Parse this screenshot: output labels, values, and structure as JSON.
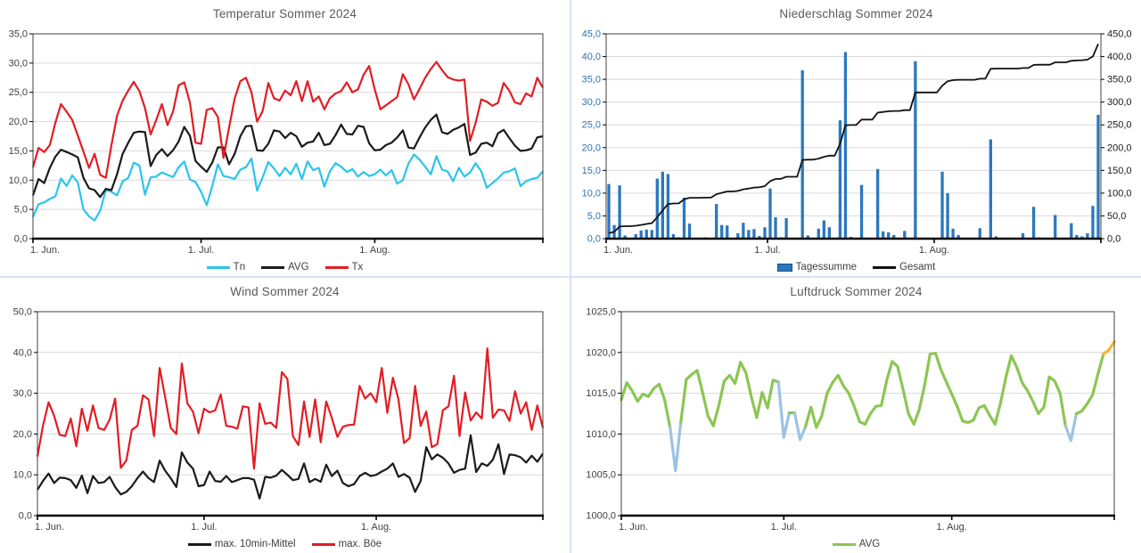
{
  "chart_data": [
    {
      "type": "line",
      "title": "Temperatur Sommer 2024",
      "grid_color": "#d9d9d9",
      "border_color": "#404040",
      "x_axis": {
        "n_points": 92,
        "tick_days": [
          0,
          30,
          61
        ],
        "tick_labels": [
          "1. Jun.",
          "1. Jul.",
          "1. Aug."
        ],
        "label_color": "#404040"
      },
      "y_axis": {
        "min": 0,
        "max": 35,
        "step": 5,
        "color": "#404040",
        "tick_labels": [
          "0,0",
          "5,0",
          "10,0",
          "15,0",
          "20,0",
          "25,0",
          "30,0",
          "35,0"
        ]
      },
      "line_series": [
        {
          "name": "Tn",
          "color": "#2BC4EC",
          "width": 2.2,
          "values": [
            3.7,
            5.9,
            6.2,
            6.8,
            7.2,
            10.3,
            9.0,
            10.8,
            9.6,
            5.0,
            3.8,
            3.1,
            4.8,
            8.3,
            8.0,
            7.4,
            9.8,
            10.4,
            13.0,
            12.5,
            7.5,
            10.5,
            10.6,
            11.3,
            10.9,
            10.5,
            12.2,
            13.2,
            10.1,
            9.7,
            8.0,
            5.7,
            9.0,
            12.7,
            10.7,
            10.5,
            10.2,
            11.8,
            12.2,
            13.7,
            8.2,
            10.5,
            13.1,
            12.0,
            10.7,
            12.1,
            11.0,
            12.8,
            10.2,
            13.2,
            11.7,
            12.1,
            8.9,
            11.5,
            12.9,
            12.3,
            11.4,
            11.9,
            10.6,
            11.4,
            10.7,
            11.0,
            11.8,
            10.8,
            11.7,
            9.4,
            10.0,
            12.8,
            14.4,
            13.5,
            12.3,
            11.0,
            14.1,
            11.8,
            11.5,
            9.8,
            12.1,
            10.6,
            11.3,
            12.9,
            11.5,
            8.7,
            9.5,
            10.3,
            11.3,
            11.5,
            12.0,
            9.0,
            9.8,
            10.2,
            10.4,
            11.5
          ]
        },
        {
          "name": "AVG",
          "color": "#1a1a1a",
          "width": 2.2,
          "values": [
            7.4,
            10.2,
            9.5,
            12.1,
            14.0,
            15.2,
            14.8,
            14.4,
            13.9,
            10.4,
            8.6,
            8.3,
            7.1,
            8.5,
            8.3,
            11.0,
            14.5,
            16.4,
            18.1,
            18.3,
            18.2,
            12.4,
            14.3,
            15.3,
            14.1,
            15.1,
            16.6,
            19.1,
            17.6,
            13.3,
            12.3,
            11.4,
            13.0,
            15.6,
            15.6,
            12.7,
            14.5,
            17.5,
            19.2,
            19.3,
            15.1,
            15.0,
            16.2,
            18.5,
            18.3,
            17.2,
            18.1,
            17.5,
            15.7,
            16.4,
            16.6,
            18.1,
            16.0,
            16.2,
            17.7,
            19.5,
            17.9,
            17.8,
            19.3,
            19.1,
            16.3,
            15.1,
            15.2,
            16.0,
            16.4,
            17.3,
            18.5,
            15.6,
            15.4,
            17.3,
            19.0,
            20.3,
            21.2,
            18.2,
            17.9,
            18.6,
            19.0,
            19.6,
            14.3,
            14.7,
            16.2,
            16.4,
            15.8,
            18.0,
            18.6,
            17.2,
            15.9,
            15.0,
            15.1,
            15.4,
            17.3,
            17.5
          ]
        },
        {
          "name": "Tx",
          "color": "#E21D24",
          "width": 2.2,
          "values": [
            12.2,
            15.5,
            14.8,
            16.0,
            19.8,
            23.0,
            21.7,
            20.3,
            17.6,
            14.9,
            12.1,
            14.5,
            10.9,
            10.4,
            16.0,
            21.0,
            23.6,
            25.3,
            26.8,
            25.2,
            22.3,
            17.8,
            20.3,
            23.0,
            19.4,
            21.7,
            26.2,
            26.7,
            23.3,
            16.4,
            16.2,
            22.0,
            22.3,
            20.8,
            13.8,
            19.0,
            24.0,
            26.9,
            27.5,
            25.0,
            20.0,
            21.8,
            26.6,
            24.0,
            23.6,
            25.3,
            24.5,
            26.9,
            23.5,
            26.9,
            23.4,
            24.3,
            22.1,
            24.0,
            24.8,
            25.2,
            26.7,
            25.0,
            25.5,
            28.0,
            29.5,
            25.5,
            22.1,
            22.8,
            23.5,
            24.2,
            28.1,
            26.4,
            23.8,
            25.6,
            27.5,
            29.0,
            30.2,
            28.8,
            27.6,
            27.2,
            27.0,
            27.2,
            16.7,
            19.8,
            23.8,
            23.4,
            22.7,
            23.2,
            26.6,
            25.3,
            23.3,
            23.0,
            24.8,
            24.3,
            27.5,
            25.8
          ]
        }
      ],
      "legend": [
        {
          "label": "Tn",
          "type": "line",
          "color": "#2BC4EC"
        },
        {
          "label": "AVG",
          "type": "line",
          "color": "#1a1a1a"
        },
        {
          "label": "Tx",
          "type": "line",
          "color": "#E21D24"
        }
      ]
    },
    {
      "type": "bar-line",
      "title": "Niederschlag Sommer 2024",
      "grid_color": "#d9d9d9",
      "border_color": "#404040",
      "x_axis": {
        "n_points": 92,
        "tick_days": [
          0,
          30,
          61
        ],
        "tick_labels": [
          "1. Jun.",
          "1. Jul.",
          "1. Aug."
        ],
        "label_color": "#404040"
      },
      "y_axis": {
        "min": 0,
        "max": 45,
        "step": 5,
        "color": "#2E74B5",
        "tick_labels": [
          "0,0",
          "5,0",
          "10,0",
          "15,0",
          "20,0",
          "25,0",
          "30,0",
          "35,0",
          "40,0",
          "45,0"
        ]
      },
      "y_axis_right": {
        "min": 0,
        "max": 450,
        "step": 50,
        "color": "#1a1a1a",
        "tick_labels": [
          "0,0",
          "50,0",
          "100,0",
          "150,0",
          "200,0",
          "250,0",
          "300,0",
          "350,0",
          "400,0",
          "450,0"
        ]
      },
      "bar_series": {
        "name": "Tagessumme",
        "color": "#2B78BE",
        "values": [
          12.0,
          3.0,
          11.7,
          0.7,
          0.0,
          1.0,
          1.8,
          2.0,
          1.9,
          13.2,
          14.7,
          14.2,
          1.0,
          0.3,
          9.0,
          3.3,
          0.0,
          0.0,
          0.3,
          0.0,
          7.6,
          3.0,
          2.9,
          0.0,
          1.2,
          3.5,
          1.9,
          2.1,
          0.6,
          2.5,
          11.0,
          4.7,
          0.3,
          4.5,
          0.0,
          0.0,
          37.0,
          0.7,
          0.0,
          2.2,
          4.0,
          2.5,
          0.0,
          26.0,
          41.0,
          0.4,
          0.0,
          11.8,
          0.0,
          0.0,
          15.3,
          1.6,
          1.4,
          0.8,
          0.0,
          1.7,
          0.0,
          39.0,
          0.0,
          0.0,
          0.0,
          0.0,
          14.7,
          10.0,
          2.2,
          0.8,
          0.0,
          0.0,
          0.0,
          2.3,
          0.0,
          21.8,
          0.5,
          0.0,
          0.0,
          0.0,
          0.0,
          1.2,
          0.0,
          7.0,
          0.3,
          0.0,
          0.0,
          5.2,
          0.0,
          0.0,
          3.4,
          0.8,
          0.5,
          1.2,
          7.2,
          27.2
        ]
      },
      "line_series": [
        {
          "name": "Gesamt",
          "axis": "right",
          "color": "#111111",
          "width": 1.8,
          "values": [
            12.0,
            15.0,
            26.7,
            27.4,
            27.4,
            28.4,
            30.2,
            32.2,
            34.1,
            47.3,
            62.0,
            76.2,
            77.2,
            77.5,
            86.5,
            89.8,
            89.8,
            89.8,
            90.1,
            90.1,
            97.7,
            100.7,
            103.6,
            103.6,
            104.8,
            108.3,
            110.2,
            112.3,
            112.9,
            115.4,
            126.4,
            131.1,
            131.4,
            135.9,
            135.9,
            135.9,
            172.9,
            173.6,
            173.6,
            175.8,
            179.8,
            182.3,
            182.3,
            208.3,
            249.3,
            249.7,
            249.7,
            261.5,
            261.5,
            261.5,
            276.8,
            278.4,
            279.8,
            280.6,
            280.6,
            282.3,
            282.3,
            321.3,
            321.3,
            321.3,
            321.3,
            321.3,
            336.0,
            346.0,
            348.2,
            349.0,
            349.0,
            349.0,
            349.0,
            351.3,
            351.3,
            373.1,
            373.6,
            373.6,
            373.6,
            373.6,
            373.6,
            374.8,
            374.8,
            381.8,
            382.1,
            382.1,
            382.1,
            387.3,
            387.3,
            387.3,
            390.7,
            391.5,
            392.0,
            393.2,
            400.4,
            427.6
          ]
        }
      ],
      "legend": [
        {
          "label": "Tagessumme",
          "type": "bar",
          "color": "#2B78BE",
          "border": "#1B4E79"
        },
        {
          "label": "Gesamt",
          "type": "line",
          "color": "#111111"
        }
      ]
    },
    {
      "type": "line",
      "title": "Wind Sommer 2024",
      "grid_color": "#d9d9d9",
      "border_color": "#404040",
      "x_axis": {
        "n_points": 92,
        "tick_days": [
          0,
          30,
          61
        ],
        "tick_labels": [
          "1. Jun.",
          "1. Jul.",
          "1. Aug."
        ],
        "label_color": "#404040"
      },
      "y_axis": {
        "min": 0,
        "max": 50,
        "step": 10,
        "color": "#404040",
        "tick_labels": [
          "0,0",
          "10,0",
          "20,0",
          "30,0",
          "40,0",
          "50,0"
        ]
      },
      "line_series": [
        {
          "name": "max. 10min-Mittel",
          "color": "#1a1a1a",
          "width": 2.2,
          "values": [
            6.3,
            8.5,
            10.3,
            8.0,
            9.3,
            9.2,
            8.7,
            6.8,
            9.8,
            5.5,
            9.7,
            8.0,
            8.2,
            9.5,
            7.0,
            5.2,
            5.8,
            7.2,
            9.2,
            10.8,
            9.2,
            8.2,
            13.5,
            11.0,
            9.2,
            7.0,
            15.5,
            13.0,
            11.5,
            7.2,
            7.5,
            10.8,
            8.5,
            8.3,
            9.7,
            8.2,
            8.7,
            9.2,
            9.2,
            8.8,
            4.2,
            9.5,
            9.3,
            9.8,
            11.2,
            10.0,
            8.7,
            9.0,
            12.8,
            8.2,
            9.0,
            8.3,
            12.5,
            9.7,
            11.0,
            8.0,
            7.2,
            7.7,
            9.7,
            10.5,
            9.7,
            10.0,
            10.8,
            11.5,
            12.8,
            9.5,
            10.2,
            9.3,
            5.8,
            8.5,
            16.8,
            13.8,
            15.0,
            14.2,
            12.8,
            10.5,
            11.2,
            11.5,
            19.7,
            10.7,
            12.8,
            12.2,
            13.7,
            17.5,
            10.2,
            15.0,
            14.8,
            14.3,
            13.0,
            14.7,
            13.2,
            15.2
          ]
        },
        {
          "name": "max. Böe",
          "color": "#E21D24",
          "width": 2.2,
          "values": [
            14.5,
            22.0,
            27.8,
            24.5,
            19.8,
            19.5,
            23.8,
            17.0,
            26.2,
            20.8,
            27.0,
            21.5,
            21.0,
            23.5,
            28.7,
            11.7,
            13.5,
            21.0,
            22.0,
            29.5,
            28.5,
            19.5,
            36.2,
            29.0,
            21.5,
            20.0,
            37.3,
            27.5,
            25.5,
            20.2,
            26.2,
            25.3,
            25.8,
            29.7,
            22.0,
            21.8,
            21.3,
            26.8,
            26.5,
            11.5,
            27.5,
            22.5,
            22.8,
            21.5,
            35.2,
            33.5,
            19.5,
            17.3,
            28.0,
            19.3,
            28.5,
            18.0,
            28.0,
            24.0,
            19.3,
            21.8,
            22.2,
            22.3,
            31.8,
            28.7,
            30.0,
            27.8,
            36.2,
            25.2,
            33.8,
            28.5,
            17.8,
            19.0,
            31.8,
            22.0,
            25.5,
            16.8,
            17.5,
            25.8,
            26.8,
            34.3,
            19.5,
            30.2,
            23.3,
            25.3,
            23.8,
            41.0,
            24.0,
            26.0,
            25.8,
            23.2,
            30.5,
            25.0,
            27.8,
            21.0,
            27.0,
            21.5
          ]
        }
      ],
      "legend": [
        {
          "label": "max. 10min-Mittel",
          "type": "line",
          "color": "#1a1a1a"
        },
        {
          "label": "max. Böe",
          "type": "line",
          "color": "#E21D24"
        }
      ]
    },
    {
      "type": "line",
      "title": "Luftdruck Sommer 2024",
      "grid_color": "#d9d9d9",
      "border_color": "#404040",
      "x_axis": {
        "n_points": 92,
        "tick_days": [
          0,
          30,
          61
        ],
        "tick_labels": [
          "1. Jun.",
          "1. Jul.",
          "1. Aug."
        ],
        "label_color": "#404040"
      },
      "y_axis": {
        "min": 1000,
        "max": 1025,
        "step": 5,
        "color": "#404040",
        "tick_labels": [
          "1000,0",
          "1005,0",
          "1010,0",
          "1015,0",
          "1020,0",
          "1025,0"
        ]
      },
      "line_series": [
        {
          "name": "AVG",
          "color": "#8CC653",
          "width": 3.2,
          "color_rules": {
            "low_below": 1010,
            "low_color": "#9BC3E6",
            "high_at": 1020,
            "high_color": "#F4B72B"
          },
          "values": [
            1014.2,
            1016.3,
            1015.3,
            1014.0,
            1014.9,
            1014.6,
            1015.6,
            1016.1,
            1014.2,
            1010.8,
            1005.5,
            1011.5,
            1016.7,
            1017.3,
            1017.8,
            1015.1,
            1012.2,
            1011.0,
            1013.5,
            1016.5,
            1017.2,
            1016.2,
            1018.8,
            1017.5,
            1014.6,
            1012.0,
            1015.1,
            1013.2,
            1016.6,
            1016.4,
            1009.6,
            1012.6,
            1012.6,
            1009.3,
            1010.9,
            1013.3,
            1010.8,
            1012.2,
            1015.0,
            1016.3,
            1017.2,
            1015.9,
            1015.0,
            1013.4,
            1011.5,
            1011.2,
            1012.5,
            1013.4,
            1013.5,
            1016.6,
            1018.9,
            1018.3,
            1015.5,
            1012.5,
            1011.2,
            1013.0,
            1016.0,
            1019.8,
            1019.9,
            1017.9,
            1016.4,
            1014.9,
            1013.4,
            1011.6,
            1011.4,
            1011.7,
            1013.2,
            1013.5,
            1012.3,
            1011.2,
            1013.8,
            1017.0,
            1019.6,
            1018.2,
            1016.3,
            1015.3,
            1014.0,
            1012.5,
            1013.3,
            1017.0,
            1016.5,
            1015.0,
            1011.0,
            1009.2,
            1012.5,
            1012.8,
            1013.7,
            1014.8,
            1017.4,
            1019.8,
            1020.3,
            1021.3
          ]
        }
      ],
      "legend": [
        {
          "label": "AVG",
          "type": "line",
          "color": "#8CC653"
        }
      ]
    }
  ]
}
